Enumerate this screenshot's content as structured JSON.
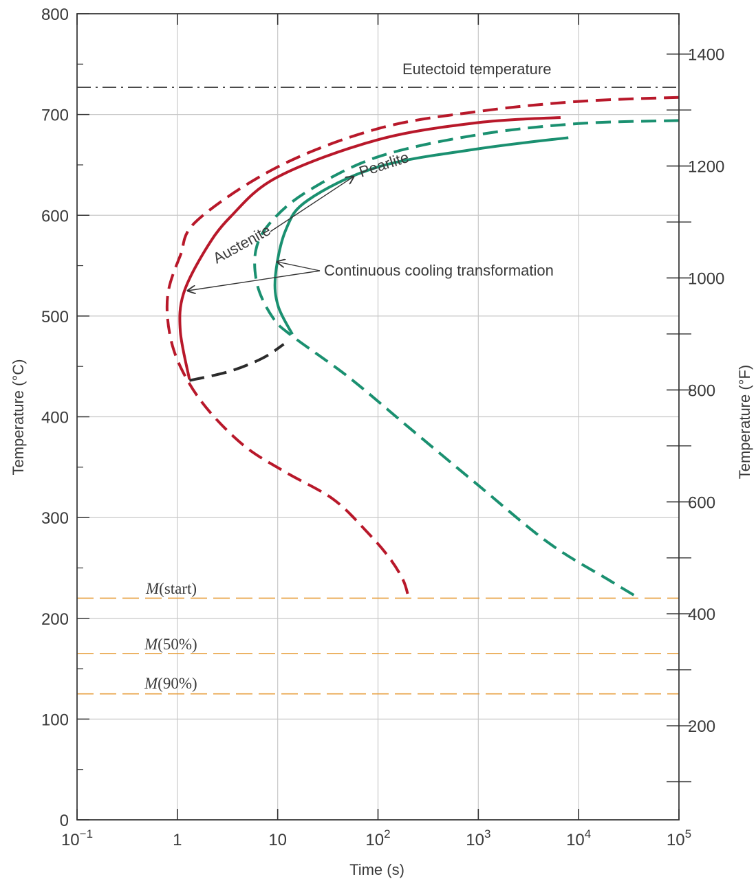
{
  "chart_data": {
    "type": "line",
    "xlabel": "Time (s)",
    "ylabel": "Temperature (°C)",
    "ylabel_right": "Temperature (°F)",
    "x_scale": "log",
    "xlim": [
      0.1,
      100000
    ],
    "ylim": [
      0,
      800
    ],
    "grid": true,
    "x_ticks": [
      {
        "value": 0.1,
        "base": "10",
        "exp": "−1"
      },
      {
        "value": 1,
        "base": "1",
        "exp": ""
      },
      {
        "value": 10,
        "base": "10",
        "exp": ""
      },
      {
        "value": 100,
        "base": "10",
        "exp": "2"
      },
      {
        "value": 1000,
        "base": "10",
        "exp": "3"
      },
      {
        "value": 10000,
        "base": "10",
        "exp": "4"
      },
      {
        "value": 100000,
        "base": "10",
        "exp": "5"
      }
    ],
    "y_ticks": [
      0,
      100,
      200,
      300,
      400,
      500,
      600,
      700,
      800
    ],
    "y_ticks_minor": [
      50,
      150,
      250,
      350,
      450,
      550,
      650,
      750
    ],
    "y2_ticks": [
      {
        "label": "200",
        "temp_f": 200
      },
      {
        "label": "400",
        "temp_f": 400
      },
      {
        "label": "600",
        "temp_f": 600
      },
      {
        "label": "800",
        "temp_f": 800
      },
      {
        "label": "1000",
        "temp_f": 1000
      },
      {
        "label": "1200",
        "temp_f": 1200
      },
      {
        "label": "1400",
        "temp_f": 1400
      }
    ],
    "y2_ticks_minor_f": [
      100,
      300,
      500,
      700,
      900,
      1100,
      1300
    ],
    "reference_lines": [
      {
        "name": "Eutectoid temperature",
        "y": 727,
        "color": "#2b2b2b",
        "style": "dashdot"
      },
      {
        "name": "M(start)",
        "prefix": "M",
        "suffix": "(start)",
        "y": 220,
        "color": "#e8a040",
        "style": "dashed"
      },
      {
        "name": "M(50%)",
        "prefix": "M",
        "suffix": "(50%)",
        "y": 165,
        "color": "#e8a040",
        "style": "dashed"
      },
      {
        "name": "M(90%)",
        "prefix": "M",
        "suffix": "(90%)",
        "y": 125,
        "color": "#e8a040",
        "style": "dashed"
      }
    ],
    "series": [
      {
        "color": "#b8182a",
        "style": "dashed",
        "points": [
          [
            100000,
            717
          ],
          [
            10000,
            713
          ],
          [
            1000,
            703
          ],
          [
            100,
            686
          ],
          [
            10,
            648
          ],
          [
            1.58,
            595
          ],
          [
            1.07,
            560
          ],
          [
            0.8,
            520
          ],
          [
            0.86,
            477
          ],
          [
            1.2,
            440
          ],
          [
            2.1,
            405
          ],
          [
            4.8,
            370
          ],
          [
            12,
            345
          ],
          [
            36,
            318
          ],
          [
            79,
            285
          ],
          [
            130,
            260
          ],
          [
            178,
            238
          ],
          [
            200,
            222
          ]
        ]
      },
      {
        "color": "#b8182a",
        "style": "solid",
        "points": [
          [
            6600,
            697
          ],
          [
            1000,
            692
          ],
          [
            100,
            675
          ],
          [
            10,
            638
          ],
          [
            3.35,
            598
          ],
          [
            1.86,
            564
          ],
          [
            1.15,
            522
          ],
          [
            1.07,
            485
          ],
          [
            1.32,
            437
          ]
        ]
      },
      {
        "color": "#1a9070",
        "style": "dashed",
        "points": [
          [
            100000,
            694
          ],
          [
            10000,
            691
          ],
          [
            1000,
            680
          ],
          [
            100,
            658
          ],
          [
            20,
            624
          ],
          [
            8.5,
            593
          ],
          [
            6.05,
            565
          ],
          [
            6.3,
            530
          ],
          [
            9,
            498
          ],
          [
            14,
            480
          ],
          [
            50,
            440
          ],
          [
            200,
            390
          ],
          [
            1000,
            332
          ],
          [
            5000,
            275
          ],
          [
            20000,
            238
          ],
          [
            37000,
            222
          ]
        ]
      },
      {
        "color": "#1a9070",
        "style": "solid",
        "points": [
          [
            7900,
            677
          ],
          [
            1000,
            666
          ],
          [
            100,
            648
          ],
          [
            20,
            615
          ],
          [
            12,
            585
          ],
          [
            9.5,
            540
          ],
          [
            10.1,
            510
          ],
          [
            14,
            482
          ]
        ]
      },
      {
        "color": "#2b2b2b",
        "style": "dashed",
        "points": [
          [
            1.32,
            436
          ],
          [
            3.3,
            445
          ],
          [
            7,
            458
          ],
          [
            11.5,
            472
          ]
        ]
      }
    ],
    "annotations": [
      {
        "text": "Eutectoid temperature"
      },
      {
        "text": "Pearlite"
      },
      {
        "text": "Austenite"
      },
      {
        "text": "Continuous cooling transformation"
      }
    ]
  }
}
